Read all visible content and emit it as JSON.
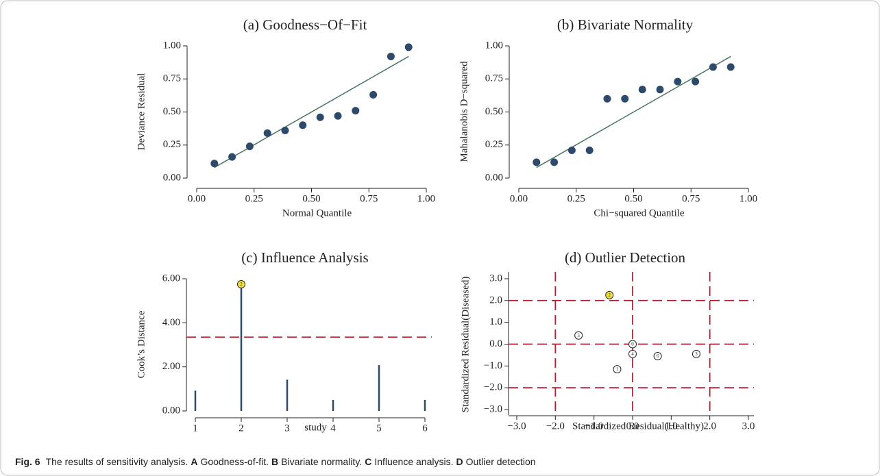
{
  "chart_data": [
    {
      "type": "scatter",
      "title": "(a) Goodness−Of−Fit",
      "x_label": "Normal Quantile",
      "y_label": "Deviance Residual",
      "x": [
        0.077,
        0.154,
        0.231,
        0.308,
        0.385,
        0.462,
        0.538,
        0.615,
        0.692,
        0.769,
        0.846,
        0.923
      ],
      "values": [
        0.11,
        0.16,
        0.24,
        0.34,
        0.36,
        0.4,
        0.46,
        0.47,
        0.51,
        0.63,
        0.92,
        0.99
      ],
      "color": "#2e4a6b",
      "fit_line": {
        "x": [
          0.077,
          0.923
        ],
        "values": [
          0.08,
          0.92
        ],
        "color": "#4a7560"
      },
      "xlim": [
        0,
        1
      ],
      "ylim": [
        0,
        1
      ],
      "xticks": [
        {
          "value": 0,
          "label": "0.00"
        },
        {
          "value": 0.25,
          "label": "0.25"
        },
        {
          "value": 0.5,
          "label": "0.50"
        },
        {
          "value": 0.75,
          "label": "0.75"
        },
        {
          "value": 1,
          "label": "1.00"
        }
      ],
      "yticks": [
        {
          "value": 0,
          "label": "0.00"
        },
        {
          "value": 0.25,
          "label": "0.25"
        },
        {
          "value": 0.5,
          "label": "0.50"
        },
        {
          "value": 0.75,
          "label": "0.75"
        },
        {
          "value": 1,
          "label": "1.00"
        }
      ]
    },
    {
      "type": "scatter",
      "title": "(b) Bivariate Normality",
      "x_label": "Chi−squared Quantile",
      "y_label": "Mahalanobis D−squared",
      "x": [
        0.077,
        0.154,
        0.231,
        0.308,
        0.385,
        0.462,
        0.538,
        0.615,
        0.692,
        0.769,
        0.846,
        0.923
      ],
      "values": [
        0.12,
        0.12,
        0.21,
        0.21,
        0.6,
        0.6,
        0.67,
        0.67,
        0.73,
        0.73,
        0.84,
        0.84
      ],
      "color": "#2e4a6b",
      "fit_line": {
        "x": [
          0.077,
          0.923
        ],
        "values": [
          0.08,
          0.92
        ],
        "color": "#4a7560"
      },
      "xlim": [
        0,
        1
      ],
      "ylim": [
        0,
        1
      ],
      "xticks": [
        {
          "value": 0,
          "label": "0.00"
        },
        {
          "value": 0.25,
          "label": "0.25"
        },
        {
          "value": 0.5,
          "label": "0.50"
        },
        {
          "value": 0.75,
          "label": "0.75"
        },
        {
          "value": 1,
          "label": "1.00"
        }
      ],
      "yticks": [
        {
          "value": 0,
          "label": "0.00"
        },
        {
          "value": 0.25,
          "label": "0.25"
        },
        {
          "value": 0.5,
          "label": "0.50"
        },
        {
          "value": 0.75,
          "label": "0.75"
        },
        {
          "value": 1,
          "label": "1.00"
        }
      ]
    },
    {
      "type": "spike",
      "title": "(c) Influence Analysis",
      "x_label": "study",
      "y_label": "Cook’s Distance",
      "x": [
        1,
        2,
        3,
        4,
        5,
        6
      ],
      "values": [
        0.92,
        5.75,
        1.42,
        0.5,
        2.08,
        0.5
      ],
      "color": "#2e4a6b",
      "threshold": 3.35,
      "threshold_color": "#b22234",
      "highlight": {
        "index": 1,
        "label": "2",
        "color": "#f2e33a"
      },
      "xlim": [
        1,
        6
      ],
      "ylim": [
        0,
        6
      ],
      "xticks": [
        1,
        2,
        3,
        4,
        5,
        6
      ],
      "yticks": [
        {
          "value": 0,
          "label": "0.00"
        },
        {
          "value": 2,
          "label": "2.00"
        },
        {
          "value": 4,
          "label": "4.00"
        },
        {
          "value": 6,
          "label": "6.00"
        }
      ]
    },
    {
      "type": "outlier",
      "title": "(d) Outlier Detection",
      "x_label": "Standardized Residual(Healthy)",
      "y_label": "Standardized Residual(Diseased)",
      "x": [
        -0.6,
        -1.4,
        0,
        0,
        -0.4,
        0.65,
        1.65
      ],
      "values": [
        2.25,
        0.4,
        0,
        -0.45,
        -1.15,
        -0.55,
        -0.45
      ],
      "point_labels": [
        "2",
        "5",
        "0",
        "4",
        "1",
        "6",
        "3"
      ],
      "highlight": {
        "index": 0,
        "color": "#f2e33a"
      },
      "reference_lines": {
        "x": [
          -2,
          0,
          2
        ],
        "y": [
          2,
          0,
          -2
        ],
        "color": "#b22234"
      },
      "xlim": [
        -3,
        3
      ],
      "ylim": [
        -3,
        3
      ],
      "xticks": [
        {
          "value": -3,
          "label": "−3.0"
        },
        {
          "value": -2,
          "label": "−2.0"
        },
        {
          "value": -1,
          "label": "−1.0"
        },
        {
          "value": 0,
          "label": "0.0"
        },
        {
          "value": 1,
          "label": "1.0"
        },
        {
          "value": 2,
          "label": "2.0"
        },
        {
          "value": 3,
          "label": "3.0"
        }
      ],
      "yticks": [
        {
          "value": -3,
          "label": "−3.0"
        },
        {
          "value": -2,
          "label": "−2.0"
        },
        {
          "value": -1,
          "label": "−1.0"
        },
        {
          "value": 0,
          "label": "0.0"
        },
        {
          "value": 1,
          "label": "1.0"
        },
        {
          "value": 2,
          "label": "2.0"
        },
        {
          "value": 3,
          "label": "3.0"
        }
      ]
    }
  ],
  "caption": {
    "label": "Fig. 6",
    "parts": [
      "The results of sensitivity analysis.",
      "A",
      "Goodness-of-fit.",
      "B",
      "Bivariate normality.",
      "C",
      "Influence analysis.",
      "D",
      "Outlier detection"
    ]
  }
}
